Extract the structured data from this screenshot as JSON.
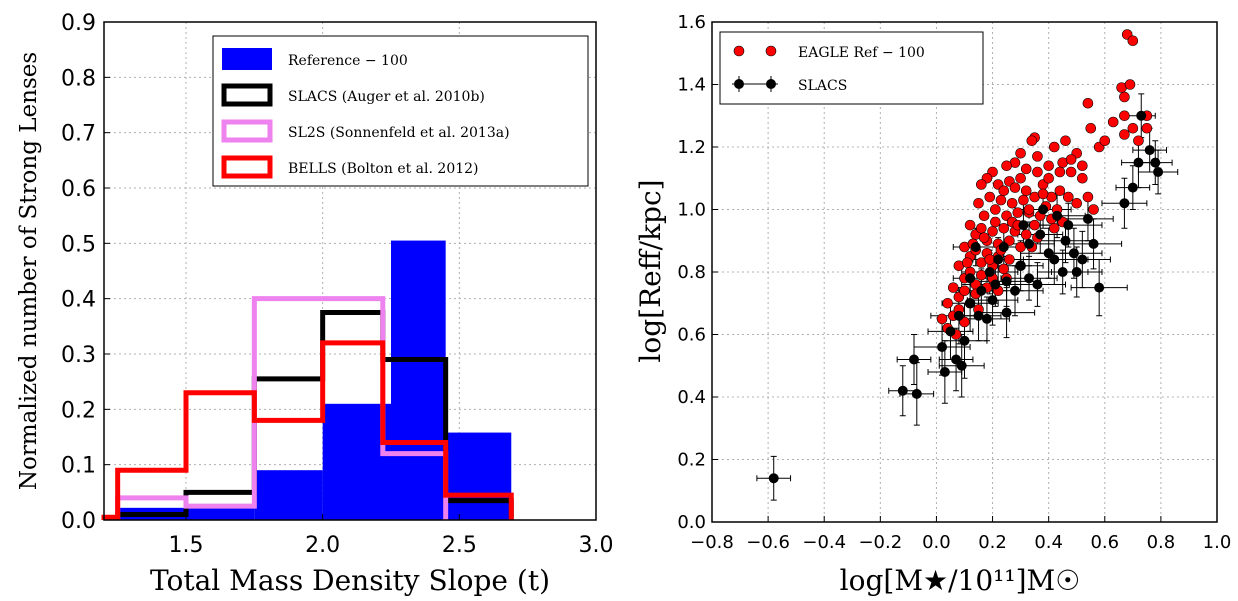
{
  "chart_data": [
    {
      "type": "histogram",
      "xlabel": "Total Mass Density Slope (t)",
      "ylabel": "Normalized number of Strong Lenses",
      "xlim": [
        1.2,
        3.0
      ],
      "ylim": [
        0.0,
        0.9
      ],
      "xticks": [
        "1.5",
        "2.0",
        "2.5",
        "3.0"
      ],
      "yticks": [
        "0.0",
        "0.1",
        "0.2",
        "0.3",
        "0.4",
        "0.5",
        "0.6",
        "0.7",
        "0.8",
        "0.9"
      ],
      "grid": true,
      "legend_position": "top-right",
      "series": [
        {
          "name": "Reference − 100",
          "style": "filled",
          "color": "#0000ff",
          "edges": [
            1.25,
            1.75,
            2.0,
            2.25,
            2.45,
            2.69
          ],
          "values": [
            0.022,
            0.09,
            0.21,
            0.505,
            0.158
          ]
        },
        {
          "name": "SLACS (Auger et al. 2010b)",
          "style": "step",
          "color": "#000000",
          "edges": [
            1.25,
            1.5,
            1.75,
            2.0,
            2.22,
            2.45,
            2.69
          ],
          "values": [
            0.01,
            0.05,
            0.255,
            0.375,
            0.29,
            0.035
          ]
        },
        {
          "name": "SL2S (Sonnenfeld et al. 2013a)",
          "style": "step",
          "color": "#ee82ee",
          "edges": [
            1.25,
            1.5,
            1.75,
            2.22,
            2.45
          ],
          "values": [
            0.04,
            0.025,
            0.4,
            0.12
          ]
        },
        {
          "name": "BELLS (Bolton et al. 2012)",
          "style": "step",
          "color": "#ff0000",
          "edges": [
            1.2,
            1.25,
            1.5,
            1.75,
            2.0,
            2.22,
            2.45,
            2.69
          ],
          "values": [
            0.005,
            0.09,
            0.23,
            0.18,
            0.32,
            0.14,
            0.045
          ]
        }
      ]
    },
    {
      "type": "scatter",
      "xlabel": "log[M★/10¹¹]M☉",
      "ylabel": "log[Reff/kpc]",
      "xlim": [
        -0.8,
        1.0
      ],
      "ylim": [
        0.0,
        1.6
      ],
      "xticks": [
        "−0.8",
        "−0.6",
        "−0.4",
        "−0.2",
        "0.0",
        "0.2",
        "0.4",
        "0.6",
        "0.8",
        "1.0"
      ],
      "yticks": [
        "0.0",
        "0.2",
        "0.4",
        "0.6",
        "0.8",
        "1.0",
        "1.2",
        "1.4",
        "1.6"
      ],
      "grid": true,
      "legend_position": "top-left",
      "series": [
        {
          "name": "EAGLE Ref − 100",
          "marker": "circle",
          "color": "#ff0000",
          "points": [
            [
              0.68,
              1.56
            ],
            [
              0.7,
              1.54
            ],
            [
              0.66,
              1.39
            ],
            [
              0.69,
              1.4
            ],
            [
              0.67,
              1.36
            ],
            [
              0.67,
              1.3
            ],
            [
              0.7,
              1.26
            ],
            [
              0.67,
              1.24
            ],
            [
              0.75,
              1.3
            ],
            [
              0.75,
              1.26
            ],
            [
              0.72,
              1.22
            ],
            [
              0.54,
              1.34
            ],
            [
              0.55,
              1.26
            ],
            [
              0.58,
              1.2
            ],
            [
              0.5,
              1.18
            ],
            [
              0.48,
              1.12
            ],
            [
              0.45,
              1.15
            ],
            [
              0.42,
              1.2
            ],
            [
              0.4,
              1.14
            ],
            [
              0.35,
              1.23
            ],
            [
              0.34,
              1.22
            ],
            [
              0.3,
              1.18
            ],
            [
              0.28,
              1.15
            ],
            [
              0.25,
              1.14
            ],
            [
              0.2,
              1.12
            ],
            [
              0.18,
              1.1
            ],
            [
              0.16,
              1.08
            ],
            [
              0.22,
              1.08
            ],
            [
              0.26,
              1.09
            ],
            [
              0.3,
              1.1
            ],
            [
              0.32,
              1.06
            ],
            [
              0.36,
              1.12
            ],
            [
              0.38,
              1.08
            ],
            [
              0.41,
              1.04
            ],
            [
              0.44,
              1.06
            ],
            [
              0.47,
              1.04
            ],
            [
              0.5,
              1.02
            ],
            [
              0.52,
              1.1
            ],
            [
              0.54,
              1.04
            ],
            [
              0.56,
              1.0
            ],
            [
              0.15,
              1.02
            ],
            [
              0.17,
              0.98
            ],
            [
              0.19,
              1.04
            ],
            [
              0.21,
              1.0
            ],
            [
              0.23,
              1.03
            ],
            [
              0.25,
              0.98
            ],
            [
              0.27,
              1.02
            ],
            [
              0.29,
              0.99
            ],
            [
              0.31,
              1.03
            ],
            [
              0.33,
              0.99
            ],
            [
              0.35,
              1.04
            ],
            [
              0.37,
              0.98
            ],
            [
              0.39,
              1.01
            ],
            [
              0.41,
              0.97
            ],
            [
              0.43,
              1.0
            ],
            [
              0.45,
              0.96
            ],
            [
              0.12,
              0.95
            ],
            [
              0.14,
              0.92
            ],
            [
              0.16,
              0.94
            ],
            [
              0.18,
              0.9
            ],
            [
              0.2,
              0.93
            ],
            [
              0.22,
              0.89
            ],
            [
              0.24,
              0.94
            ],
            [
              0.26,
              0.9
            ],
            [
              0.28,
              0.93
            ],
            [
              0.3,
              0.88
            ],
            [
              0.32,
              0.92
            ],
            [
              0.34,
              0.88
            ],
            [
              0.36,
              0.91
            ],
            [
              0.1,
              0.88
            ],
            [
              0.12,
              0.85
            ],
            [
              0.14,
              0.87
            ],
            [
              0.16,
              0.83
            ],
            [
              0.18,
              0.86
            ],
            [
              0.2,
              0.82
            ],
            [
              0.22,
              0.85
            ],
            [
              0.24,
              0.81
            ],
            [
              0.26,
              0.84
            ],
            [
              0.08,
              0.82
            ],
            [
              0.1,
              0.78
            ],
            [
              0.12,
              0.8
            ],
            [
              0.14,
              0.76
            ],
            [
              0.16,
              0.79
            ],
            [
              0.18,
              0.75
            ],
            [
              0.2,
              0.78
            ],
            [
              0.06,
              0.75
            ],
            [
              0.08,
              0.72
            ],
            [
              0.1,
              0.74
            ],
            [
              0.12,
              0.7
            ],
            [
              0.14,
              0.73
            ],
            [
              0.04,
              0.7
            ],
            [
              0.06,
              0.66
            ],
            [
              0.08,
              0.68
            ],
            [
              0.1,
              0.64
            ],
            [
              0.02,
              0.65
            ],
            [
              0.04,
              0.62
            ],
            [
              0.07,
              0.6
            ],
            [
              0.24,
              1.06
            ],
            [
              0.28,
              1.07
            ],
            [
              0.32,
              1.13
            ],
            [
              0.36,
              1.17
            ],
            [
              0.4,
              1.1
            ],
            [
              0.44,
              1.12
            ],
            [
              0.48,
              1.16
            ],
            [
              0.52,
              1.14
            ],
            [
              0.6,
              1.22
            ],
            [
              0.63,
              1.28
            ],
            [
              0.46,
              1.22
            ],
            [
              0.38,
              1.05
            ],
            [
              0.33,
              1.0
            ],
            [
              0.27,
              0.96
            ],
            [
              0.21,
              0.96
            ],
            [
              0.17,
              0.91
            ],
            [
              0.13,
              0.89
            ],
            [
              0.11,
              0.83
            ],
            [
              0.19,
              0.84
            ],
            [
              0.23,
              0.87
            ],
            [
              0.29,
              0.95
            ],
            [
              0.35,
              0.95
            ],
            [
              0.42,
              0.94
            ],
            [
              0.25,
              0.78
            ],
            [
              0.3,
              0.82
            ],
            [
              0.22,
              0.74
            ],
            [
              0.15,
              0.68
            ]
          ]
        },
        {
          "name": "SLACS",
          "marker": "circle-errorbar",
          "color": "#000000",
          "points": [
            [
              -0.58,
              0.14,
              0.06,
              0.07
            ],
            [
              -0.12,
              0.42,
              0.05,
              0.08
            ],
            [
              -0.08,
              0.52,
              0.06,
              0.08
            ],
            [
              -0.07,
              0.41,
              0.06,
              0.1
            ],
            [
              0.02,
              0.56,
              0.1,
              0.09
            ],
            [
              0.03,
              0.48,
              0.06,
              0.1
            ],
            [
              0.05,
              0.61,
              0.08,
              0.09
            ],
            [
              0.07,
              0.52,
              0.06,
              0.1
            ],
            [
              0.08,
              0.66,
              0.1,
              0.09
            ],
            [
              0.09,
              0.5,
              0.08,
              0.1
            ],
            [
              0.1,
              0.58,
              0.08,
              0.12
            ],
            [
              0.12,
              0.7,
              0.1,
              0.09
            ],
            [
              0.12,
              0.78,
              0.06,
              0.08
            ],
            [
              0.14,
              0.88,
              0.08,
              0.06
            ],
            [
              0.15,
              0.66,
              0.08,
              0.08
            ],
            [
              0.16,
              0.74,
              0.09,
              0.07
            ],
            [
              0.18,
              0.65,
              0.08,
              0.07
            ],
            [
              0.19,
              0.8,
              0.1,
              0.07
            ],
            [
              0.2,
              0.71,
              0.09,
              0.08
            ],
            [
              0.21,
              0.76,
              0.12,
              0.07
            ],
            [
              0.22,
              0.84,
              0.09,
              0.07
            ],
            [
              0.24,
              0.88,
              0.1,
              0.07
            ],
            [
              0.25,
              0.77,
              0.12,
              0.08
            ],
            [
              0.25,
              0.67,
              0.1,
              0.08
            ],
            [
              0.28,
              0.74,
              0.1,
              0.08
            ],
            [
              0.3,
              0.82,
              0.08,
              0.08
            ],
            [
              0.31,
              0.95,
              0.1,
              0.07
            ],
            [
              0.33,
              0.89,
              0.09,
              0.07
            ],
            [
              0.33,
              0.78,
              0.1,
              0.07
            ],
            [
              0.36,
              0.76,
              0.1,
              0.07
            ],
            [
              0.37,
              0.92,
              0.08,
              0.06
            ],
            [
              0.38,
              1.0,
              0.1,
              0.06
            ],
            [
              0.4,
              0.86,
              0.1,
              0.08
            ],
            [
              0.42,
              0.84,
              0.12,
              0.08
            ],
            [
              0.43,
              0.98,
              0.1,
              0.07
            ],
            [
              0.45,
              0.8,
              0.09,
              0.07
            ],
            [
              0.46,
              0.9,
              0.1,
              0.07
            ],
            [
              0.47,
              0.95,
              0.12,
              0.07
            ],
            [
              0.49,
              0.86,
              0.1,
              0.08
            ],
            [
              0.5,
              0.8,
              0.09,
              0.08
            ],
            [
              0.52,
              0.84,
              0.1,
              0.09
            ],
            [
              0.54,
              0.97,
              0.09,
              0.07
            ],
            [
              0.56,
              0.89,
              0.1,
              0.08
            ],
            [
              0.58,
              0.75,
              0.1,
              0.09
            ],
            [
              0.67,
              1.02,
              0.08,
              0.08
            ],
            [
              0.7,
              1.07,
              0.06,
              0.07
            ],
            [
              0.72,
              1.15,
              0.06,
              0.08
            ],
            [
              0.73,
              1.3,
              0.05,
              0.07
            ],
            [
              0.76,
              1.19,
              0.06,
              0.07
            ],
            [
              0.78,
              1.15,
              0.06,
              0.07
            ],
            [
              0.79,
              1.12,
              0.07,
              0.07
            ]
          ]
        }
      ]
    }
  ]
}
